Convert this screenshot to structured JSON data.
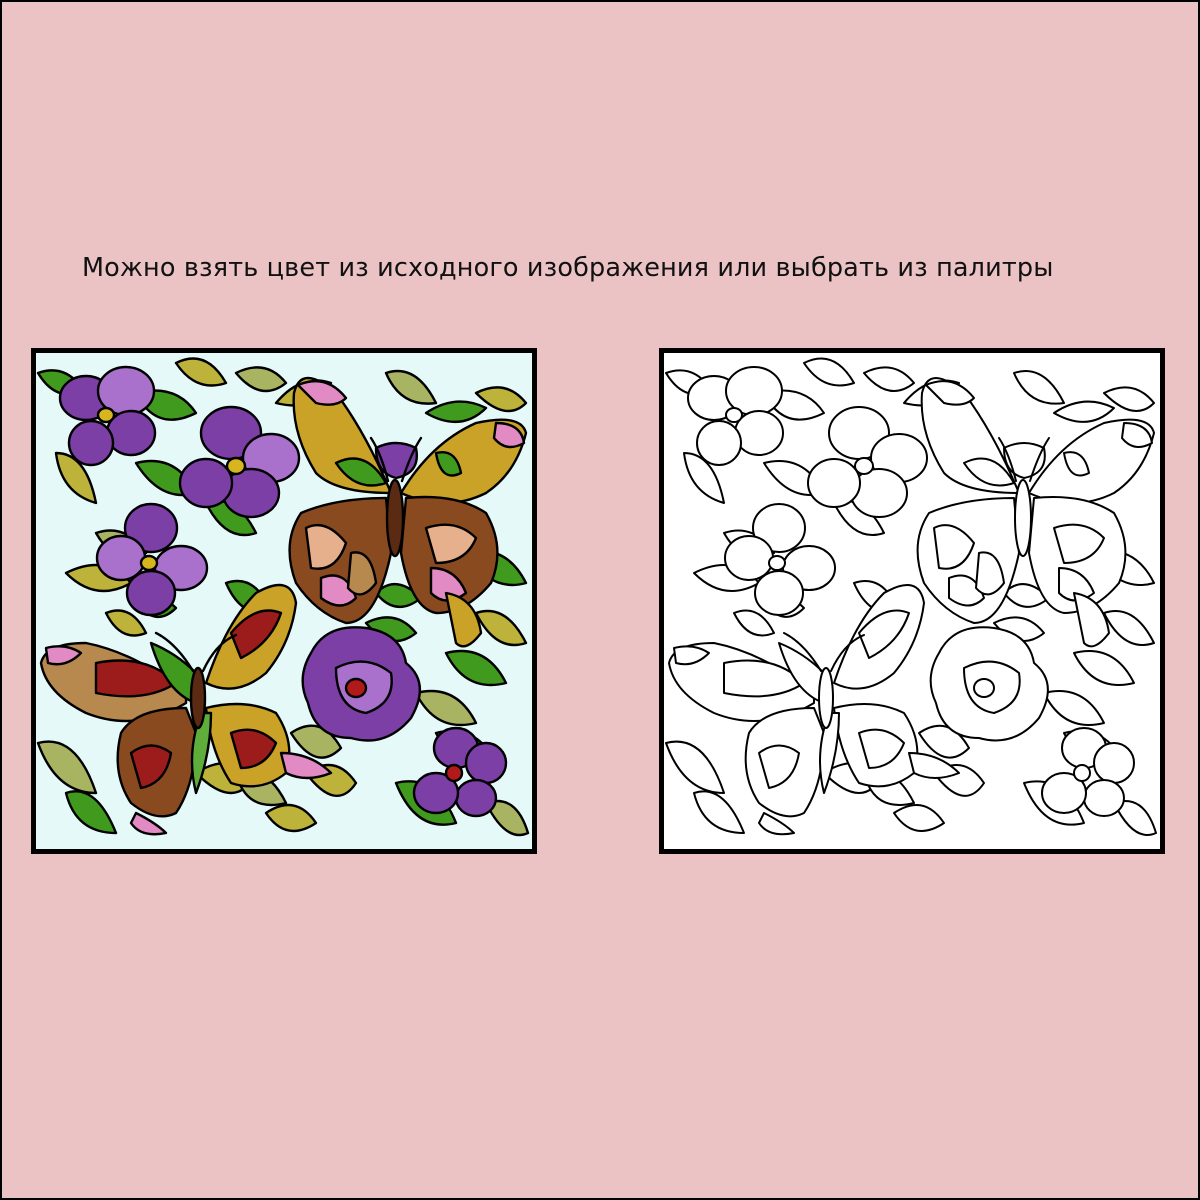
{
  "instruction_text": "Можно взять цвет из исходного изображения или выбрать из палитры",
  "source_image": {
    "icons": [
      "butterfly-icon",
      "butterfly-icon",
      "flower-icon",
      "flower-icon",
      "flower-icon",
      "flower-icon",
      "flower-icon",
      "flower-icon",
      "leaf-icon"
    ],
    "background": "#e6f9f9"
  },
  "coloring_canvas": {
    "icons": [
      "butterfly-outline-icon",
      "butterfly-outline-icon",
      "flower-outline-icon",
      "leaf-outline-icon"
    ],
    "background": "#ffffff"
  },
  "colors": {
    "page_background": "#ebc3c5",
    "frame": "#000000",
    "leaf_green": "#3f9a1e",
    "leaf_olive": "#bdb23a",
    "leaf_sage": "#a9b463",
    "flower_purple": "#7b3fa6",
    "flower_violet": "#a971cc",
    "flower_center": "#d6b51e",
    "wing_ochre": "#c9a227",
    "wing_brown": "#8a4a1f",
    "wing_pink": "#e18ac3",
    "wing_red": "#9c1b1b",
    "wing_salmon": "#e7b08d",
    "wing_tan": "#b8894f"
  }
}
